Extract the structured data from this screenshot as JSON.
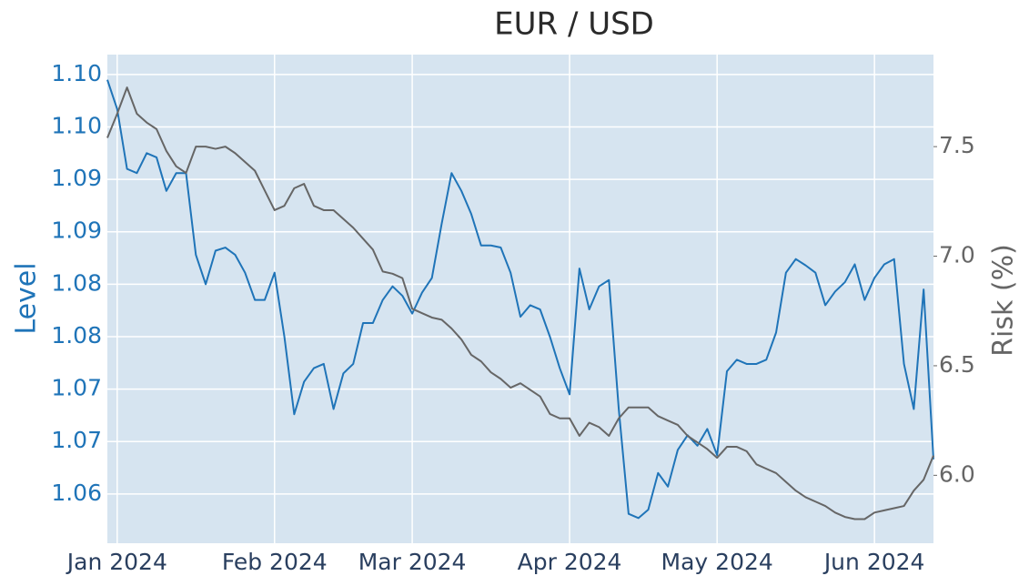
{
  "chart_data": {
    "type": "line",
    "title": "EUR / USD",
    "y_label": "Level",
    "y2_label": "Risk (%)",
    "background": "#d6e4f0",
    "grid": true,
    "categories": [
      null,
      "Jan 2024",
      null,
      null,
      null,
      null,
      null,
      null,
      null,
      null,
      null,
      null,
      null,
      null,
      null,
      null,
      null,
      "Feb 2024",
      null,
      null,
      null,
      null,
      null,
      null,
      null,
      null,
      null,
      null,
      null,
      null,
      null,
      "Mar 2024",
      null,
      null,
      null,
      null,
      null,
      null,
      null,
      null,
      null,
      null,
      null,
      null,
      null,
      null,
      null,
      "Apr 2024",
      null,
      null,
      null,
      null,
      null,
      null,
      null,
      null,
      null,
      null,
      null,
      null,
      null,
      null,
      "May 2024",
      null,
      null,
      null,
      null,
      null,
      null,
      null,
      null,
      null,
      null,
      null,
      null,
      null,
      null,
      null,
      "Jun 2024",
      null,
      null,
      null,
      null,
      null,
      null
    ],
    "ylim": [
      1.0553,
      1.1019
    ],
    "yticks": [
      1.06,
      {
        "value": 1.065,
        "label": "1.07"
      },
      1.07,
      {
        "value": 1.075,
        "label": "1.08"
      },
      1.08,
      {
        "value": 1.085,
        "label": "1.09"
      },
      1.09,
      {
        "value": 1.095,
        "label": "1.10"
      },
      {
        "value": 1.1,
        "label": "1.10"
      }
    ],
    "y2lim": [
      5.69,
      7.92
    ],
    "y2ticks": [
      {
        "value": 6,
        "label": "6.0"
      },
      6.5,
      {
        "value": 7,
        "label": "7.0"
      },
      7.5
    ],
    "series": [
      {
        "name": "Level",
        "color": "#1f74b8",
        "axis": "y",
        "values": [
          1.0995,
          1.0967,
          1.091,
          1.0906,
          1.0925,
          1.0921,
          1.0889,
          1.0906,
          1.0906,
          1.0828,
          1.08,
          1.0832,
          1.0835,
          1.0828,
          1.0811,
          1.0785,
          1.0785,
          1.0811,
          1.075,
          1.0676,
          1.0707,
          1.072,
          1.0724,
          1.0681,
          1.0715,
          1.0724,
          1.0763,
          1.0763,
          1.0785,
          1.0798,
          1.0789,
          1.0772,
          1.0792,
          1.0806,
          1.0858,
          1.0906,
          1.0889,
          1.0867,
          1.0837,
          1.0837,
          1.0835,
          1.0811,
          1.0769,
          1.078,
          1.0776,
          1.075,
          1.072,
          1.0695,
          1.0815,
          1.0776,
          1.0798,
          1.0804,
          1.0681,
          1.0581,
          1.0577,
          1.0585,
          1.062,
          1.0607,
          1.0642,
          1.0656,
          1.0646,
          1.0662,
          1.0637,
          1.0717,
          1.0728,
          1.0724,
          1.0724,
          1.0728,
          1.0754,
          1.0811,
          1.0824,
          1.0818,
          1.0811,
          1.078,
          1.0793,
          1.0802,
          1.0819,
          1.0785,
          1.0806,
          1.0819,
          1.0824,
          1.0724,
          1.0681,
          1.0795,
          1.0633
        ]
      },
      {
        "name": "Risk (%)",
        "color": "#666666",
        "axis": "y2",
        "values": [
          7.54,
          7.65,
          7.77,
          7.65,
          7.61,
          7.58,
          7.48,
          7.41,
          7.38,
          7.5,
          7.5,
          7.49,
          7.5,
          7.47,
          7.43,
          7.39,
          7.3,
          7.21,
          7.23,
          7.31,
          7.33,
          7.23,
          7.21,
          7.21,
          7.17,
          7.13,
          7.08,
          7.03,
          6.93,
          6.92,
          6.9,
          6.76,
          6.74,
          6.72,
          6.71,
          6.67,
          6.62,
          6.55,
          6.52,
          6.47,
          6.44,
          6.4,
          6.42,
          6.39,
          6.36,
          6.28,
          6.26,
          6.26,
          6.18,
          6.24,
          6.22,
          6.18,
          6.26,
          6.31,
          6.31,
          6.31,
          6.27,
          6.25,
          6.23,
          6.18,
          6.15,
          6.12,
          6.08,
          6.13,
          6.13,
          6.11,
          6.05,
          6.03,
          6.01,
          5.97,
          5.93,
          5.9,
          5.88,
          5.86,
          5.83,
          5.81,
          5.8,
          5.8,
          5.83,
          5.84,
          5.85,
          5.86,
          5.93,
          5.98,
          6.09
        ]
      }
    ]
  }
}
